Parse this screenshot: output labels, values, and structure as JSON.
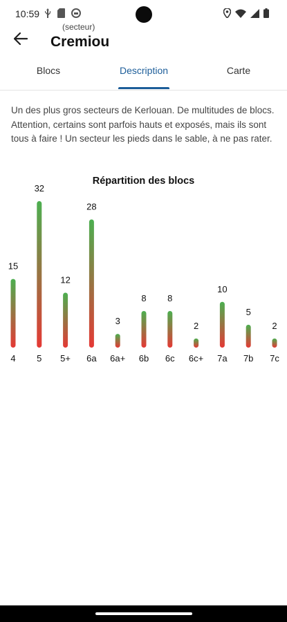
{
  "status_bar": {
    "time": "10:59",
    "left_icons": [
      "usb-icon",
      "sd-card-icon",
      "shield-app-icon"
    ],
    "right_icons": [
      "location-icon",
      "wifi-icon",
      "signal-icon",
      "battery-icon"
    ]
  },
  "app_bar": {
    "subtitle": "(secteur)",
    "title": "Cremiou"
  },
  "tabs": [
    {
      "label": "Blocs",
      "selected": false
    },
    {
      "label": "Description",
      "selected": true
    },
    {
      "label": "Carte",
      "selected": false
    }
  ],
  "description": "Un des plus gros secteurs de Kerlouan. De multitudes de blocs. Attention, certains sont parfois hauts et exposés, mais ils sont tous à faire ! Un secteur les pieds dans le sable, à ne pas rater.",
  "colors": {
    "accent": "#1c5d99",
    "bar_top": "#4caf50",
    "bar_bottom": "#e53935"
  },
  "chart_data": {
    "type": "bar",
    "title": "Répartition des blocs",
    "categories": [
      "4",
      "5",
      "5+",
      "6a",
      "6a+",
      "6b",
      "6c",
      "6c+",
      "7a",
      "7b",
      "7c"
    ],
    "values": [
      15,
      32,
      12,
      28,
      3,
      8,
      8,
      2,
      10,
      5,
      2
    ],
    "xlabel": "",
    "ylabel": "",
    "ylim": [
      0,
      32
    ],
    "grid": false,
    "legend": "none"
  }
}
